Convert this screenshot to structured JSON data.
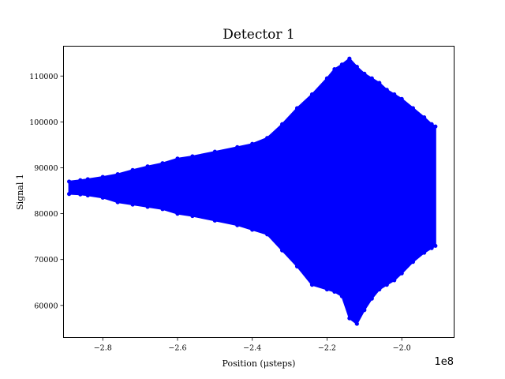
{
  "chart_data": {
    "type": "line",
    "title": "Detector 1",
    "xlabel": "Position (μsteps)",
    "ylabel": "Signal 1",
    "x_offset_label": "1e8",
    "xlim": [
      -290500000.0,
      -186000000.0
    ],
    "ylim": [
      53000,
      116500
    ],
    "x_ticks": [
      -280000000.0,
      -260000000.0,
      -240000000.0,
      -220000000.0,
      -200000000.0
    ],
    "x_tick_labels": [
      "−2.8",
      "−2.6",
      "−2.4",
      "−2.2",
      "−2.0"
    ],
    "y_ticks": [
      60000,
      70000,
      80000,
      90000,
      100000,
      110000
    ],
    "y_tick_labels": [
      "60000",
      "70000",
      "80000",
      "90000",
      "100000",
      "110000"
    ],
    "grid": false,
    "marker": "circle",
    "color": "#0000ff",
    "series": [
      {
        "x": [
          -289000000.0,
          -286000000.0,
          -284000000.0,
          -280000000.0,
          -276000000.0,
          -272000000.0,
          -268000000.0,
          -264000000.0,
          -260000000.0,
          -256000000.0,
          -250000000.0,
          -244000000.0,
          -240000000.0,
          -236000000.0,
          -232000000.0,
          -228000000.0,
          -224000000.0,
          -220000000.0,
          -218000000.0,
          -216000000.0,
          -214000000.0,
          -212000000.0,
          -210000000.0,
          -208000000.0,
          -206000000.0,
          -204000000.0,
          -202000000.0,
          -200000000.0,
          -197000000.0,
          -194000000.0,
          -192000000.0,
          -191000000.0
        ],
        "upper": [
          87000,
          87300,
          87500,
          88000,
          88600,
          89500,
          90300,
          91000,
          92000,
          92500,
          93500,
          94500,
          95200,
          96500,
          99500,
          103000,
          106000,
          109500,
          111500,
          112500,
          113800,
          112000,
          110500,
          109500,
          108500,
          107000,
          106000,
          105000,
          103000,
          101000,
          99500,
          99000
        ],
        "lower": [
          84300,
          84200,
          84000,
          83500,
          82500,
          82000,
          81500,
          81000,
          80000,
          79500,
          78500,
          77500,
          76500,
          75500,
          72000,
          68500,
          64500,
          63500,
          63000,
          62000,
          57200,
          56000,
          59000,
          61500,
          63500,
          64500,
          65500,
          67000,
          69500,
          71500,
          72500,
          73000
        ]
      }
    ]
  }
}
